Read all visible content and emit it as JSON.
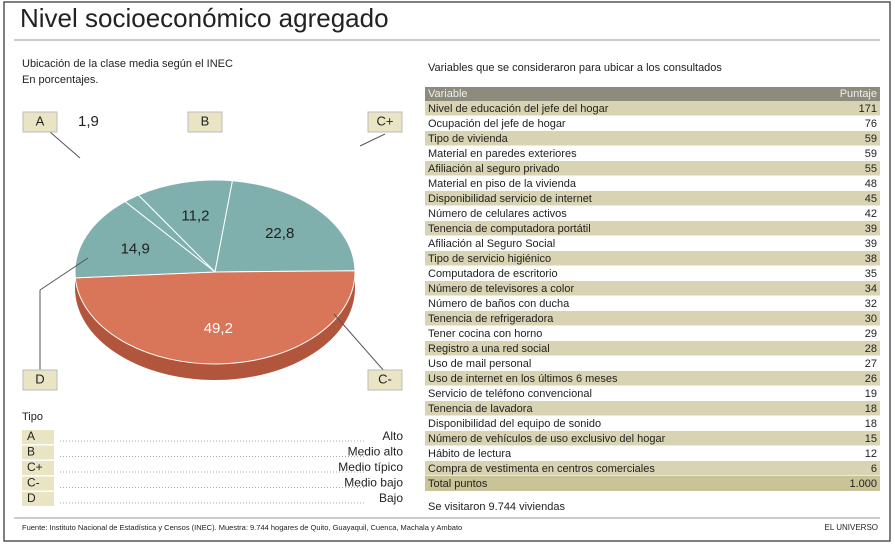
{
  "chart_data": {
    "type": "pie",
    "title": "Nivel socioeconómico agregado",
    "subtitle": [
      "Ubicación de la clase media según el INEC",
      "En porcentajes."
    ],
    "categories": [
      "A",
      "B",
      "C+",
      "C-",
      "D"
    ],
    "values": [
      1.9,
      11.2,
      22.8,
      49.2,
      14.9
    ],
    "value_labels": [
      "1,9",
      "11,2",
      "22,8",
      "49,2",
      "14,9"
    ],
    "colors": [
      "#7fb0ad",
      "#7fb0ad",
      "#7fb0ad",
      "#d9765a",
      "#7fb0ad"
    ]
  },
  "legend": {
    "title": "Tipo",
    "descriptions": [
      "Alto",
      "Medio alto",
      "Medio típico",
      "Medio bajo",
      "Bajo"
    ]
  },
  "table": {
    "title": "Variables que se consideraron para ubicar a los consultados",
    "header": [
      "Variable",
      "Puntaje"
    ],
    "rows": [
      [
        "Nivel de educación del jefe del hogar",
        "171"
      ],
      [
        "Ocupación del jefe de hogar",
        "76"
      ],
      [
        "Tipo de vivienda",
        "59"
      ],
      [
        "Material en paredes exteriores",
        "59"
      ],
      [
        "Afiliación al seguro privado",
        "55"
      ],
      [
        "Material en piso de la vivienda",
        "48"
      ],
      [
        "Disponibilidad servicio de internet",
        "45"
      ],
      [
        "Número de celulares activos",
        "42"
      ],
      [
        "Tenencia de computadora portátil",
        "39"
      ],
      [
        "Afiliación al Seguro Social",
        "39"
      ],
      [
        "Tipo de servicio higiénico",
        "38"
      ],
      [
        "Computadora de escritorio",
        "35"
      ],
      [
        "Número de televisores a color",
        "34"
      ],
      [
        "Número de baños con ducha",
        "32"
      ],
      [
        "Tenencia de refrigeradora",
        "30"
      ],
      [
        "Tener cocina con horno",
        "29"
      ],
      [
        "Registro a una red social",
        "28"
      ],
      [
        "Uso de mail personal",
        "27"
      ],
      [
        "Uso de internet en los últimos 6 meses",
        "26"
      ],
      [
        "Servicio de teléfono convencional",
        "19"
      ],
      [
        "Tenencia de lavadora",
        "18"
      ],
      [
        "Disponibilidad del equipo de sonido",
        "18"
      ],
      [
        "Número de vehículos de uso exclusivo del hogar",
        "15"
      ],
      [
        "Hábito de lectura",
        "12"
      ],
      [
        "Compra de vestimenta en centros comerciales",
        "6"
      ]
    ],
    "total": [
      "Total puntos",
      "1.000"
    ],
    "note": "Se visitaron 9.744 viviendas"
  },
  "footer": {
    "source": "Fuente: Instituto Nacional de Estadística y Censos (INEC). Muestra: 9.744 hogares de Quito, Guayaquil, Cuenca, Machala y Ambato",
    "brand": "EL UNIVERSO"
  }
}
